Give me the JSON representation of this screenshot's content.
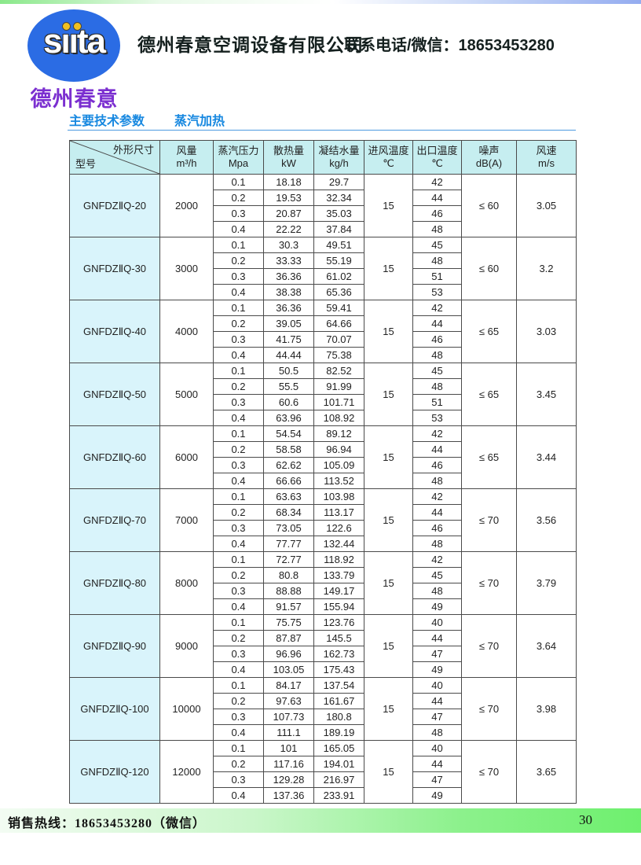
{
  "header": {
    "logo_text": "sııta",
    "logo_subtitle": "德州春意",
    "company_name": "德州春意空调设备有限公司",
    "contact": "联系电话/微信：18653453280"
  },
  "section": {
    "title_left": "主要技术参数",
    "title_right": "蒸汽加热"
  },
  "table": {
    "corner": {
      "top": "外形尺寸",
      "bottom": "型号"
    },
    "columns": [
      {
        "label": "风量",
        "unit": "m³/h"
      },
      {
        "label": "蒸汽压力",
        "unit": "Mpa"
      },
      {
        "label": "散热量",
        "unit": "kW"
      },
      {
        "label": "凝结水量",
        "unit": "kg/h"
      },
      {
        "label": "进风温度",
        "unit": "℃"
      },
      {
        "label": "出口温度",
        "unit": "℃"
      },
      {
        "label": "噪声",
        "unit": "dB(A)"
      },
      {
        "label": "风速",
        "unit": "m/s"
      }
    ],
    "rows": [
      {
        "model": "GNFDZⅡQ-20",
        "airflow": "2000",
        "inlet": "15",
        "noise": "≤ 60",
        "speed": "3.05",
        "sub": [
          {
            "pressure": "0.1",
            "heat": "18.18",
            "condensate": "29.7",
            "outlet": "42"
          },
          {
            "pressure": "0.2",
            "heat": "19.53",
            "condensate": "32.34",
            "outlet": "44"
          },
          {
            "pressure": "0.3",
            "heat": "20.87",
            "condensate": "35.03",
            "outlet": "46"
          },
          {
            "pressure": "0.4",
            "heat": "22.22",
            "condensate": "37.84",
            "outlet": "48"
          }
        ]
      },
      {
        "model": "GNFDZⅡQ-30",
        "airflow": "3000",
        "inlet": "15",
        "noise": "≤ 60",
        "speed": "3.2",
        "sub": [
          {
            "pressure": "0.1",
            "heat": "30.3",
            "condensate": "49.51",
            "outlet": "45"
          },
          {
            "pressure": "0.2",
            "heat": "33.33",
            "condensate": "55.19",
            "outlet": "48"
          },
          {
            "pressure": "0.3",
            "heat": "36.36",
            "condensate": "61.02",
            "outlet": "51"
          },
          {
            "pressure": "0.4",
            "heat": "38.38",
            "condensate": "65.36",
            "outlet": "53"
          }
        ]
      },
      {
        "model": "GNFDZⅡQ-40",
        "airflow": "4000",
        "inlet": "15",
        "noise": "≤ 65",
        "speed": "3.03",
        "sub": [
          {
            "pressure": "0.1",
            "heat": "36.36",
            "condensate": "59.41",
            "outlet": "42"
          },
          {
            "pressure": "0.2",
            "heat": "39.05",
            "condensate": "64.66",
            "outlet": "44"
          },
          {
            "pressure": "0.3",
            "heat": "41.75",
            "condensate": "70.07",
            "outlet": "46"
          },
          {
            "pressure": "0.4",
            "heat": "44.44",
            "condensate": "75.38",
            "outlet": "48"
          }
        ]
      },
      {
        "model": "GNFDZⅡQ-50",
        "airflow": "5000",
        "inlet": "15",
        "noise": "≤ 65",
        "speed": "3.45",
        "sub": [
          {
            "pressure": "0.1",
            "heat": "50.5",
            "condensate": "82.52",
            "outlet": "45"
          },
          {
            "pressure": "0.2",
            "heat": "55.5",
            "condensate": "91.99",
            "outlet": "48"
          },
          {
            "pressure": "0.3",
            "heat": "60.6",
            "condensate": "101.71",
            "outlet": "51"
          },
          {
            "pressure": "0.4",
            "heat": "63.96",
            "condensate": "108.92",
            "outlet": "53"
          }
        ]
      },
      {
        "model": "GNFDZⅡQ-60",
        "airflow": "6000",
        "inlet": "15",
        "noise": "≤ 65",
        "speed": "3.44",
        "sub": [
          {
            "pressure": "0.1",
            "heat": "54.54",
            "condensate": "89.12",
            "outlet": "42"
          },
          {
            "pressure": "0.2",
            "heat": "58.58",
            "condensate": "96.94",
            "outlet": "44"
          },
          {
            "pressure": "0.3",
            "heat": "62.62",
            "condensate": "105.09",
            "outlet": "46"
          },
          {
            "pressure": "0.4",
            "heat": "66.66",
            "condensate": "113.52",
            "outlet": "48"
          }
        ]
      },
      {
        "model": "GNFDZⅡQ-70",
        "airflow": "7000",
        "inlet": "15",
        "noise": "≤ 70",
        "speed": "3.56",
        "sub": [
          {
            "pressure": "0.1",
            "heat": "63.63",
            "condensate": "103.98",
            "outlet": "42"
          },
          {
            "pressure": "0.2",
            "heat": "68.34",
            "condensate": "113.17",
            "outlet": "44"
          },
          {
            "pressure": "0.3",
            "heat": "73.05",
            "condensate": "122.6",
            "outlet": "46"
          },
          {
            "pressure": "0.4",
            "heat": "77.77",
            "condensate": "132.44",
            "outlet": "48"
          }
        ]
      },
      {
        "model": "GNFDZⅡQ-80",
        "airflow": "8000",
        "inlet": "15",
        "noise": "≤ 70",
        "speed": "3.79",
        "sub": [
          {
            "pressure": "0.1",
            "heat": "72.77",
            "condensate": "118.92",
            "outlet": "42"
          },
          {
            "pressure": "0.2",
            "heat": "80.8",
            "condensate": "133.79",
            "outlet": "45"
          },
          {
            "pressure": "0.3",
            "heat": "88.88",
            "condensate": "149.17",
            "outlet": "48"
          },
          {
            "pressure": "0.4",
            "heat": "91.57",
            "condensate": "155.94",
            "outlet": "49"
          }
        ]
      },
      {
        "model": "GNFDZⅡQ-90",
        "airflow": "9000",
        "inlet": "15",
        "noise": "≤ 70",
        "speed": "3.64",
        "sub": [
          {
            "pressure": "0.1",
            "heat": "75.75",
            "condensate": "123.76",
            "outlet": "40"
          },
          {
            "pressure": "0.2",
            "heat": "87.87",
            "condensate": "145.5",
            "outlet": "44"
          },
          {
            "pressure": "0.3",
            "heat": "96.96",
            "condensate": "162.73",
            "outlet": "47"
          },
          {
            "pressure": "0.4",
            "heat": "103.05",
            "condensate": "175.43",
            "outlet": "49"
          }
        ]
      },
      {
        "model": "GNFDZⅡQ-100",
        "airflow": "10000",
        "inlet": "15",
        "noise": "≤ 70",
        "speed": "3.98",
        "sub": [
          {
            "pressure": "0.1",
            "heat": "84.17",
            "condensate": "137.54",
            "outlet": "40"
          },
          {
            "pressure": "0.2",
            "heat": "97.63",
            "condensate": "161.67",
            "outlet": "44"
          },
          {
            "pressure": "0.3",
            "heat": "107.73",
            "condensate": "180.8",
            "outlet": "47"
          },
          {
            "pressure": "0.4",
            "heat": "111.1",
            "condensate": "189.19",
            "outlet": "48"
          }
        ]
      },
      {
        "model": "GNFDZⅡQ-120",
        "airflow": "12000",
        "inlet": "15",
        "noise": "≤ 70",
        "speed": "3.65",
        "sub": [
          {
            "pressure": "0.1",
            "heat": "101",
            "condensate": "165.05",
            "outlet": "40"
          },
          {
            "pressure": "0.2",
            "heat": "117.16",
            "condensate": "194.01",
            "outlet": "44"
          },
          {
            "pressure": "0.3",
            "heat": "129.28",
            "condensate": "216.97",
            "outlet": "47"
          },
          {
            "pressure": "0.4",
            "heat": "137.36",
            "condensate": "233.91",
            "outlet": "49"
          }
        ]
      }
    ]
  },
  "footer": {
    "hotline": "销售热线：18653453280（微信）",
    "page_number": "30"
  },
  "colors": {
    "logo_blue": "#2b6ce4",
    "logo_subtitle_purple": "#7b2fd0",
    "title_blue": "#1788e0",
    "table_header_bg": "#c6eef0",
    "model_cell_bg": "#d9f4fb",
    "footer_green": "#6ef06e",
    "top_strip_green": "#8ae88a",
    "top_strip_blue": "#94acf0"
  }
}
